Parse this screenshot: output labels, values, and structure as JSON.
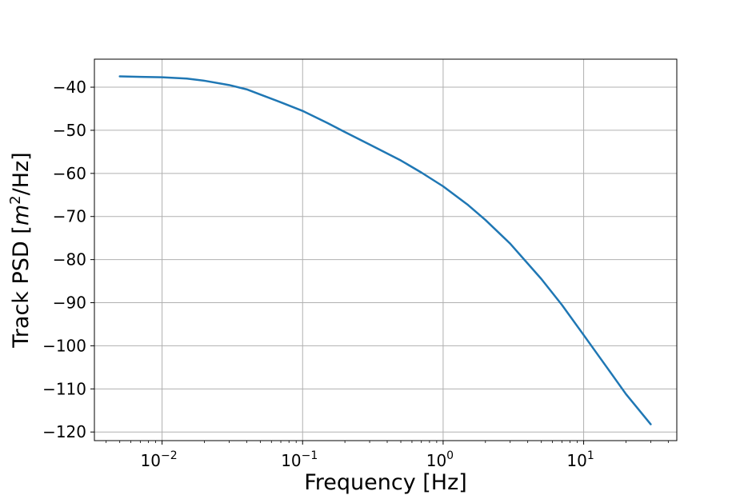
{
  "chart_data": {
    "type": "line",
    "title": "",
    "xlabel": "Frequency [Hz]",
    "ylabel_parts": {
      "prefix": "Track PSD [",
      "italic_base": "m",
      "superscript": "2",
      "suffix": "/Hz]"
    },
    "x_scale": "log",
    "xlim": [
      0.0033,
      46
    ],
    "ylim": [
      -122,
      -33.5
    ],
    "grid": true,
    "legend": false,
    "y_ticks": [
      {
        "value": -40,
        "label": "−40"
      },
      {
        "value": -50,
        "label": "−50"
      },
      {
        "value": -60,
        "label": "−60"
      },
      {
        "value": -70,
        "label": "−70"
      },
      {
        "value": -80,
        "label": "−80"
      },
      {
        "value": -90,
        "label": "−90"
      },
      {
        "value": -100,
        "label": "−100"
      },
      {
        "value": -110,
        "label": "−110"
      },
      {
        "value": -120,
        "label": "−120"
      }
    ],
    "x_ticks": [
      {
        "value": 0.01,
        "base": "10",
        "exponent": "−2"
      },
      {
        "value": 0.1,
        "base": "10",
        "exponent": "−1"
      },
      {
        "value": 1,
        "base": "10",
        "exponent": "0"
      },
      {
        "value": 10,
        "base": "10",
        "exponent": "1"
      }
    ],
    "series": [
      {
        "color": "#1f77b4",
        "x": [
          0.005,
          0.007,
          0.01,
          0.015,
          0.02,
          0.03,
          0.04,
          0.05,
          0.07,
          0.1,
          0.15,
          0.2,
          0.3,
          0.5,
          0.7,
          1.0,
          1.5,
          2.0,
          3.0,
          5.0,
          7.0,
          10.0,
          15.0,
          20.0,
          30.0
        ],
        "y": [
          -37.5,
          -37.6,
          -37.7,
          -38.0,
          -38.5,
          -39.5,
          -40.5,
          -41.7,
          -43.5,
          -45.5,
          -48.3,
          -50.4,
          -53.3,
          -57.0,
          -59.8,
          -63.0,
          -67.3,
          -70.8,
          -76.3,
          -84.5,
          -90.5,
          -97.5,
          -105.5,
          -111.2,
          -118.2
        ]
      }
    ]
  }
}
